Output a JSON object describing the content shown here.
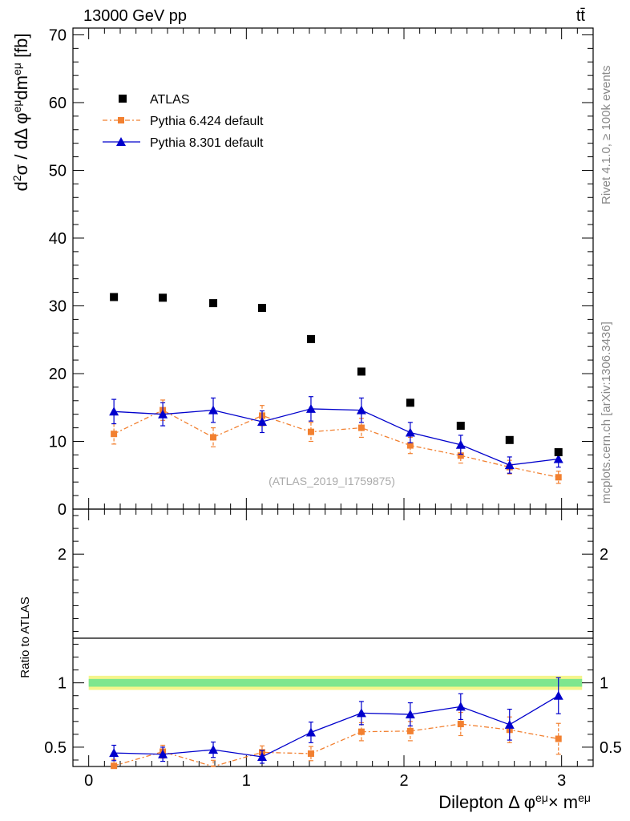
{
  "header": {
    "energy_label": "13000 GeV pp",
    "process_label": "tt̄"
  },
  "side_text": {
    "rivet": "Rivet 4.1.0, ≥ 100k events",
    "mcplots": "mcplots.cern.ch [arXiv:1306.3436]"
  },
  "analysis_label": "(ATLAS_2019_I1759875)",
  "legend": {
    "entries": [
      "ATLAS",
      "Pythia 6.424 default",
      "Pythia 8.301 default"
    ]
  },
  "colors": {
    "atlas": "#000000",
    "pythia6": "#f28030",
    "pythia8": "#0000cc",
    "band_outer": "#f5f58c",
    "band_inner": "#7ee68e"
  },
  "chart_data": [
    {
      "type": "scatter",
      "title": "",
      "ylabel": "d²σ / dΔφ^eμ dm^eμ [fb]",
      "xlabel": "",
      "xlim": [
        -0.1,
        3.2
      ],
      "ylim": [
        0,
        71
      ],
      "yticks": [
        0,
        10,
        20,
        30,
        40,
        50,
        60,
        70
      ],
      "x": [
        0.16,
        0.47,
        0.79,
        1.1,
        1.41,
        1.73,
        2.04,
        2.36,
        2.67,
        2.98
      ],
      "series": [
        {
          "name": "ATLAS",
          "marker": "square",
          "values": [
            31.3,
            31.2,
            30.4,
            29.7,
            25.1,
            20.3,
            15.7,
            12.3,
            10.2,
            8.4
          ],
          "errors": [
            0,
            0,
            0,
            0,
            0,
            0,
            0,
            0,
            0,
            0
          ]
        },
        {
          "name": "Pythia 6.424 default",
          "marker": "square",
          "line": "dash-dot",
          "values": [
            11.1,
            14.6,
            10.6,
            13.8,
            11.4,
            12.0,
            9.4,
            7.9,
            6.2,
            4.7
          ],
          "errors": [
            1.5,
            1.5,
            1.4,
            1.5,
            1.4,
            1.4,
            1.2,
            1.1,
            1.0,
            0.9
          ]
        },
        {
          "name": "Pythia 8.301 default",
          "marker": "triangle",
          "line": "solid",
          "values": [
            14.4,
            14.0,
            14.6,
            12.9,
            14.8,
            14.6,
            11.3,
            9.5,
            6.5,
            7.4
          ],
          "errors": [
            1.8,
            1.7,
            1.8,
            1.6,
            1.8,
            1.8,
            1.5,
            1.4,
            1.2,
            1.2
          ]
        }
      ]
    },
    {
      "type": "scatter",
      "title": "",
      "ylabel": "Ratio to ATLAS",
      "xlabel": "Dilepton Δ φ^eμ × m^eμ",
      "xlim": [
        -0.1,
        3.2
      ],
      "ylim": [
        0.35,
        2.35
      ],
      "yticks": [
        0.5,
        1,
        2
      ],
      "ytick_labels": [
        "0.5",
        "1",
        "2"
      ],
      "xticks": [
        0,
        1,
        2,
        3
      ],
      "xtick_labels": [
        "0",
        "1",
        "2",
        "3"
      ],
      "x": [
        0.16,
        0.47,
        0.79,
        1.1,
        1.41,
        1.73,
        2.04,
        2.36,
        2.67,
        2.98
      ],
      "band": {
        "inner": 0.03,
        "outer": 0.055
      },
      "series": [
        {
          "name": "Pythia 6.424 default",
          "marker": "square",
          "line": "dash-dot",
          "values": [
            0.355,
            0.465,
            0.348,
            0.46,
            0.45,
            0.62,
            0.625,
            0.68,
            0.635,
            0.565
          ],
          "errors": [
            0.05,
            0.05,
            0.05,
            0.05,
            0.055,
            0.07,
            0.075,
            0.09,
            0.1,
            0.12
          ]
        },
        {
          "name": "Pythia 8.301 default",
          "marker": "triangle",
          "line": "solid",
          "values": [
            0.455,
            0.445,
            0.48,
            0.425,
            0.615,
            0.765,
            0.755,
            0.815,
            0.675,
            0.9
          ],
          "errors": [
            0.06,
            0.055,
            0.06,
            0.05,
            0.08,
            0.09,
            0.09,
            0.1,
            0.12,
            0.14
          ]
        }
      ]
    }
  ]
}
